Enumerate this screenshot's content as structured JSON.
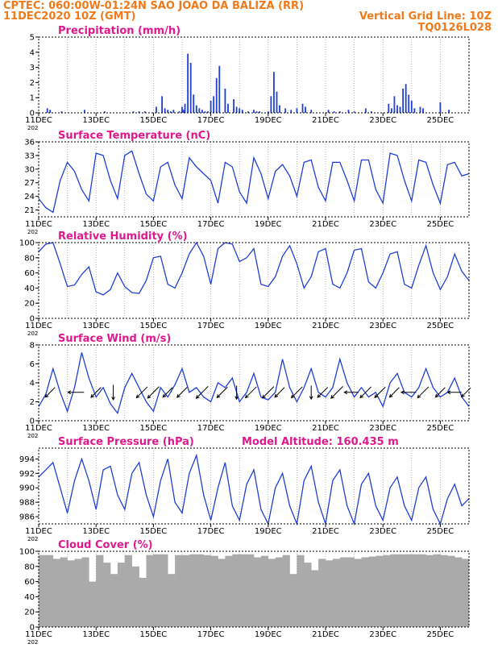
{
  "header": {
    "line1": "CPTEC:   060:00W-01:24N  SAO JOAO DA BALIZA (RR)",
    "line2_left": "11DEC2020 10Z (GMT)",
    "line2_right": "Vertical Grid Line: 10Z",
    "line3_right": "TQ0126L028"
  },
  "x_labels": [
    "11DEC",
    "13DEC",
    "15DEC",
    "17DEC",
    "19DEC",
    "21DEC",
    "23DEC",
    "25DEC"
  ],
  "year_fragment": "202",
  "colors": {
    "line": "#1f3fd6",
    "bar": "#1f3fd6",
    "cloud": "#aaaaaa",
    "title": "#e0188e",
    "header": "#f07a1a"
  },
  "chart_data": [
    {
      "type": "bar",
      "title": "Precipitation (mm/h)",
      "ylim": [
        0,
        5
      ],
      "yticks": [
        "0",
        "1",
        "2",
        "3",
        "4",
        "5"
      ],
      "x_range_days": [
        0,
        15
      ],
      "grid": "dotted vertical daily lines",
      "x": [
        0.3,
        0.4,
        0.8,
        1.6,
        2.3,
        3.3,
        3.5,
        3.7,
        4.1,
        4.3,
        4.4,
        4.5,
        4.6,
        4.7,
        4.9,
        5.0,
        5.05,
        5.1,
        5.2,
        5.3,
        5.4,
        5.5,
        5.6,
        5.7,
        5.8,
        5.9,
        6.0,
        6.1,
        6.2,
        6.3,
        6.5,
        6.6,
        6.8,
        6.9,
        7.0,
        7.1,
        7.3,
        7.5,
        7.6,
        7.7,
        8.0,
        8.1,
        8.2,
        8.3,
        8.4,
        8.6,
        8.8,
        9.0,
        9.2,
        9.3,
        9.5,
        10.1,
        10.3,
        10.5,
        10.8,
        11.0,
        11.4,
        11.6,
        12.2,
        12.3,
        12.4,
        12.5,
        12.6,
        12.7,
        12.8,
        12.9,
        13.0,
        13.1,
        13.3,
        13.4,
        14.0,
        14.3
      ],
      "values": [
        0.3,
        0.2,
        0.1,
        0.2,
        0.1,
        0.1,
        0.1,
        0.1,
        0.4,
        1.1,
        0.3,
        0.2,
        0.1,
        0.2,
        0.1,
        0.4,
        0.2,
        0.6,
        3.9,
        3.3,
        1.2,
        0.5,
        0.3,
        0.2,
        0.1,
        0.1,
        0.8,
        1.1,
        2.3,
        3.1,
        1.6,
        0.6,
        0.9,
        0.4,
        0.3,
        0.2,
        0.1,
        0.2,
        0.1,
        0.1,
        0.1,
        1.1,
        2.7,
        1.4,
        0.5,
        0.3,
        0.2,
        0.3,
        0.6,
        0.4,
        0.2,
        0.2,
        0.1,
        0.1,
        0.2,
        0.1,
        0.3,
        0.1,
        0.6,
        0.3,
        1.1,
        0.5,
        0.4,
        1.6,
        1.9,
        1.2,
        0.8,
        0.3,
        0.4,
        0.3,
        0.7,
        0.2
      ]
    },
    {
      "type": "line",
      "title": "Surface Temperature (nC)",
      "ylim": [
        19.5,
        36
      ],
      "yticks": [
        "21",
        "24",
        "27",
        "30",
        "33",
        "36"
      ],
      "y_tick_values": [
        21,
        24,
        27,
        30,
        33,
        36
      ],
      "x_range_days": [
        0,
        15
      ],
      "grid": "dotted vertical daily lines",
      "x": [
        0.0,
        0.25,
        0.5,
        0.75,
        1.0,
        1.25,
        1.5,
        1.75,
        2.0,
        2.25,
        2.5,
        2.75,
        3.0,
        3.25,
        3.5,
        3.75,
        4.0,
        4.25,
        4.5,
        4.75,
        5.0,
        5.25,
        5.5,
        5.75,
        6.0,
        6.25,
        6.5,
        6.75,
        7.0,
        7.25,
        7.5,
        7.75,
        8.0,
        8.25,
        8.5,
        8.75,
        9.0,
        9.25,
        9.5,
        9.75,
        10.0,
        10.25,
        10.5,
        10.75,
        11.0,
        11.25,
        11.5,
        11.75,
        12.0,
        12.25,
        12.5,
        12.75,
        13.0,
        13.25,
        13.5,
        13.75,
        14.0,
        14.25,
        14.5,
        14.75,
        15.0
      ],
      "values": [
        23.5,
        21.5,
        20.5,
        27.5,
        31.5,
        29.5,
        25.5,
        23,
        33.5,
        33,
        27.5,
        23.5,
        33,
        34,
        29,
        24.5,
        23,
        30.5,
        31.5,
        26.5,
        23.5,
        32.5,
        30.5,
        29,
        27.5,
        22.5,
        31.5,
        30.5,
        25,
        22.5,
        32.5,
        29,
        23.5,
        29.5,
        31,
        28.5,
        24,
        31.5,
        32,
        26,
        23,
        31.5,
        31.5,
        27.5,
        23,
        32,
        32,
        25.5,
        22.5,
        33.5,
        33,
        27.5,
        23,
        32,
        31.5,
        26.5,
        22.5,
        31,
        31.5,
        28.5,
        29
      ]
    },
    {
      "type": "line",
      "title": "Relative Humidity (%)",
      "ylim": [
        0,
        100
      ],
      "yticks": [
        "0",
        "20",
        "40",
        "60",
        "80",
        "100"
      ],
      "x_range_days": [
        0,
        15
      ],
      "grid": "dotted vertical daily lines",
      "x": [
        0.0,
        0.25,
        0.5,
        0.75,
        1.0,
        1.25,
        1.5,
        1.75,
        2.0,
        2.25,
        2.5,
        2.75,
        3.0,
        3.25,
        3.5,
        3.75,
        4.0,
        4.25,
        4.5,
        4.75,
        5.0,
        5.25,
        5.5,
        5.75,
        6.0,
        6.25,
        6.5,
        6.75,
        7.0,
        7.25,
        7.5,
        7.75,
        8.0,
        8.25,
        8.5,
        8.75,
        9.0,
        9.25,
        9.5,
        9.75,
        10.0,
        10.25,
        10.5,
        10.75,
        11.0,
        11.25,
        11.5,
        11.75,
        12.0,
        12.25,
        12.5,
        12.75,
        13.0,
        13.25,
        13.5,
        13.75,
        14.0,
        14.25,
        14.5,
        14.75,
        15.0
      ],
      "values": [
        88,
        98,
        100,
        72,
        42,
        44,
        58,
        68,
        35,
        31,
        38,
        60,
        42,
        34,
        33,
        50,
        80,
        82,
        45,
        40,
        60,
        85,
        100,
        82,
        45,
        92,
        100,
        98,
        75,
        80,
        92,
        45,
        42,
        55,
        82,
        96,
        72,
        40,
        55,
        88,
        92,
        45,
        40,
        60,
        90,
        92,
        48,
        40,
        60,
        85,
        88,
        45,
        40,
        70,
        96,
        60,
        38,
        55,
        85,
        62,
        50
      ]
    },
    {
      "type": "line",
      "title": "Surface Wind (m/s)",
      "ylim": [
        0,
        8
      ],
      "yticks": [
        "0",
        "2",
        "4",
        "6",
        "8"
      ],
      "x_range_days": [
        0,
        15
      ],
      "grid": "dotted vertical daily lines",
      "x": [
        0.0,
        0.25,
        0.5,
        0.75,
        1.0,
        1.25,
        1.5,
        1.75,
        2.0,
        2.25,
        2.5,
        2.75,
        3.0,
        3.25,
        3.5,
        3.75,
        4.0,
        4.25,
        4.5,
        4.75,
        5.0,
        5.25,
        5.5,
        5.75,
        6.0,
        6.25,
        6.5,
        6.75,
        7.0,
        7.25,
        7.5,
        7.75,
        8.0,
        8.25,
        8.5,
        8.75,
        9.0,
        9.25,
        9.5,
        9.75,
        10.0,
        10.25,
        10.5,
        10.75,
        11.0,
        11.25,
        11.5,
        11.75,
        12.0,
        12.25,
        12.5,
        12.75,
        13.0,
        13.25,
        13.5,
        13.75,
        14.0,
        14.25,
        14.5,
        14.75,
        15.0
      ],
      "values": [
        1.5,
        2.8,
        5.5,
        3.0,
        1.0,
        3.5,
        7.2,
        4.5,
        2.5,
        3.5,
        1.8,
        0.8,
        3.5,
        5.0,
        3.5,
        2.0,
        1.0,
        3.5,
        2.5,
        3.8,
        5.5,
        3.0,
        3.5,
        2.5,
        2.0,
        4.0,
        3.5,
        4.5,
        2.0,
        3.0,
        5.0,
        2.5,
        2.2,
        3.0,
        6.5,
        3.5,
        2.0,
        3.5,
        5.5,
        3.0,
        2.5,
        3.5,
        6.5,
        4.0,
        2.5,
        3.5,
        2.5,
        3.0,
        1.5,
        4.0,
        5.0,
        3.0,
        2.5,
        3.5,
        5.5,
        3.5,
        2.5,
        3.0,
        4.5,
        2.5,
        1.5
      ],
      "wind_arrows": {
        "x": [
          0.4,
          1.3,
          2.0,
          2.6,
          3.6,
          4.0,
          4.5,
          5.0,
          5.7,
          6.4,
          6.9,
          7.4,
          8.0,
          8.4,
          9.0,
          9.5,
          9.9,
          10.4,
          10.9,
          11.4,
          11.9,
          12.4,
          12.9,
          13.4,
          14.0,
          14.5,
          14.9
        ],
        "magnitude": [
          2.2,
          3.0,
          2.4,
          2.6,
          2.8,
          3.0,
          2.2,
          2.4,
          3.2,
          2.6,
          2.2,
          2.8,
          3.0,
          2.2,
          2.8,
          2.2,
          2.4,
          3.2,
          2.4,
          2.8,
          2.6,
          2.2,
          2.6,
          2.8,
          2.2,
          2.4,
          2.0
        ],
        "from_direction": [
          "NE",
          "E",
          "NE",
          "N",
          "NE",
          "NE",
          "NE",
          "NE",
          "NE",
          "NE",
          "N",
          "NE",
          "NE",
          "NE",
          "NE",
          "N",
          "NE",
          "NE",
          "E",
          "NE",
          "NE",
          "NE",
          "E",
          "NE",
          "NE",
          "E",
          "NE"
        ]
      }
    },
    {
      "type": "line",
      "title": "Surface Pressure (hPa)",
      "annotation": "Model Altitude: 160.435  m",
      "ylim": [
        985,
        995.5
      ],
      "yticks": [
        "986",
        "988",
        "990",
        "992",
        "994"
      ],
      "y_tick_values": [
        986,
        988,
        990,
        992,
        994
      ],
      "x_range_days": [
        0,
        15
      ],
      "grid": "dotted vertical daily lines",
      "x": [
        0.0,
        0.25,
        0.5,
        0.75,
        1.0,
        1.25,
        1.5,
        1.75,
        2.0,
        2.25,
        2.5,
        2.75,
        3.0,
        3.25,
        3.5,
        3.75,
        4.0,
        4.25,
        4.5,
        4.75,
        5.0,
        5.25,
        5.5,
        5.75,
        6.0,
        6.25,
        6.5,
        6.75,
        7.0,
        7.25,
        7.5,
        7.75,
        8.0,
        8.25,
        8.5,
        8.75,
        9.0,
        9.25,
        9.5,
        9.75,
        10.0,
        10.25,
        10.5,
        10.75,
        11.0,
        11.25,
        11.5,
        11.75,
        12.0,
        12.25,
        12.5,
        12.75,
        13.0,
        13.25,
        13.5,
        13.75,
        14.0,
        14.25,
        14.5,
        14.75,
        15.0
      ],
      "values": [
        991.5,
        992.5,
        993.5,
        990,
        986.5,
        991,
        994,
        991,
        987,
        992.5,
        993,
        989,
        987,
        992,
        993.5,
        989,
        986,
        991,
        994,
        988,
        986.5,
        992,
        994.5,
        989,
        985.5,
        990,
        993.5,
        987.5,
        985.5,
        990.5,
        992.5,
        987,
        985,
        990,
        992,
        987.5,
        985,
        991,
        993,
        988,
        985,
        991,
        992.5,
        987.5,
        985,
        990.5,
        992,
        987.5,
        985.5,
        990,
        991.5,
        987.5,
        985.5,
        990,
        991.5,
        987,
        985,
        988.5,
        990.5,
        987.5,
        988.5
      ]
    },
    {
      "type": "bar",
      "title": "Cloud Cover (%)",
      "ylim": [
        0,
        100
      ],
      "yticks": [
        "0",
        "20",
        "40",
        "60",
        "80",
        "100"
      ],
      "x_range_days": [
        0,
        15
      ],
      "grid": "dotted vertical daily lines",
      "x": [
        0.0,
        0.25,
        0.5,
        0.75,
        1.0,
        1.25,
        1.5,
        1.75,
        2.0,
        2.25,
        2.5,
        2.75,
        3.0,
        3.25,
        3.5,
        3.75,
        4.0,
        4.25,
        4.5,
        4.75,
        5.0,
        5.25,
        5.5,
        5.75,
        6.0,
        6.25,
        6.5,
        6.75,
        7.0,
        7.25,
        7.5,
        7.75,
        8.0,
        8.25,
        8.5,
        8.75,
        9.0,
        9.25,
        9.5,
        9.75,
        10.0,
        10.25,
        10.5,
        10.75,
        11.0,
        11.25,
        11.5,
        11.75,
        12.0,
        12.25,
        12.5,
        12.75,
        13.0,
        13.25,
        13.5,
        13.75,
        14.0,
        14.25,
        14.5,
        14.75
      ],
      "values": [
        95,
        95,
        90,
        92,
        88,
        90,
        92,
        60,
        95,
        85,
        70,
        85,
        95,
        80,
        65,
        95,
        96,
        96,
        70,
        95,
        95,
        96,
        96,
        95,
        94,
        90,
        94,
        96,
        96,
        96,
        92,
        94,
        90,
        92,
        95,
        70,
        95,
        85,
        75,
        90,
        88,
        90,
        92,
        92,
        90,
        92,
        93,
        94,
        95,
        96,
        96,
        96,
        96,
        96,
        95,
        96,
        95,
        94,
        92,
        90
      ]
    }
  ]
}
